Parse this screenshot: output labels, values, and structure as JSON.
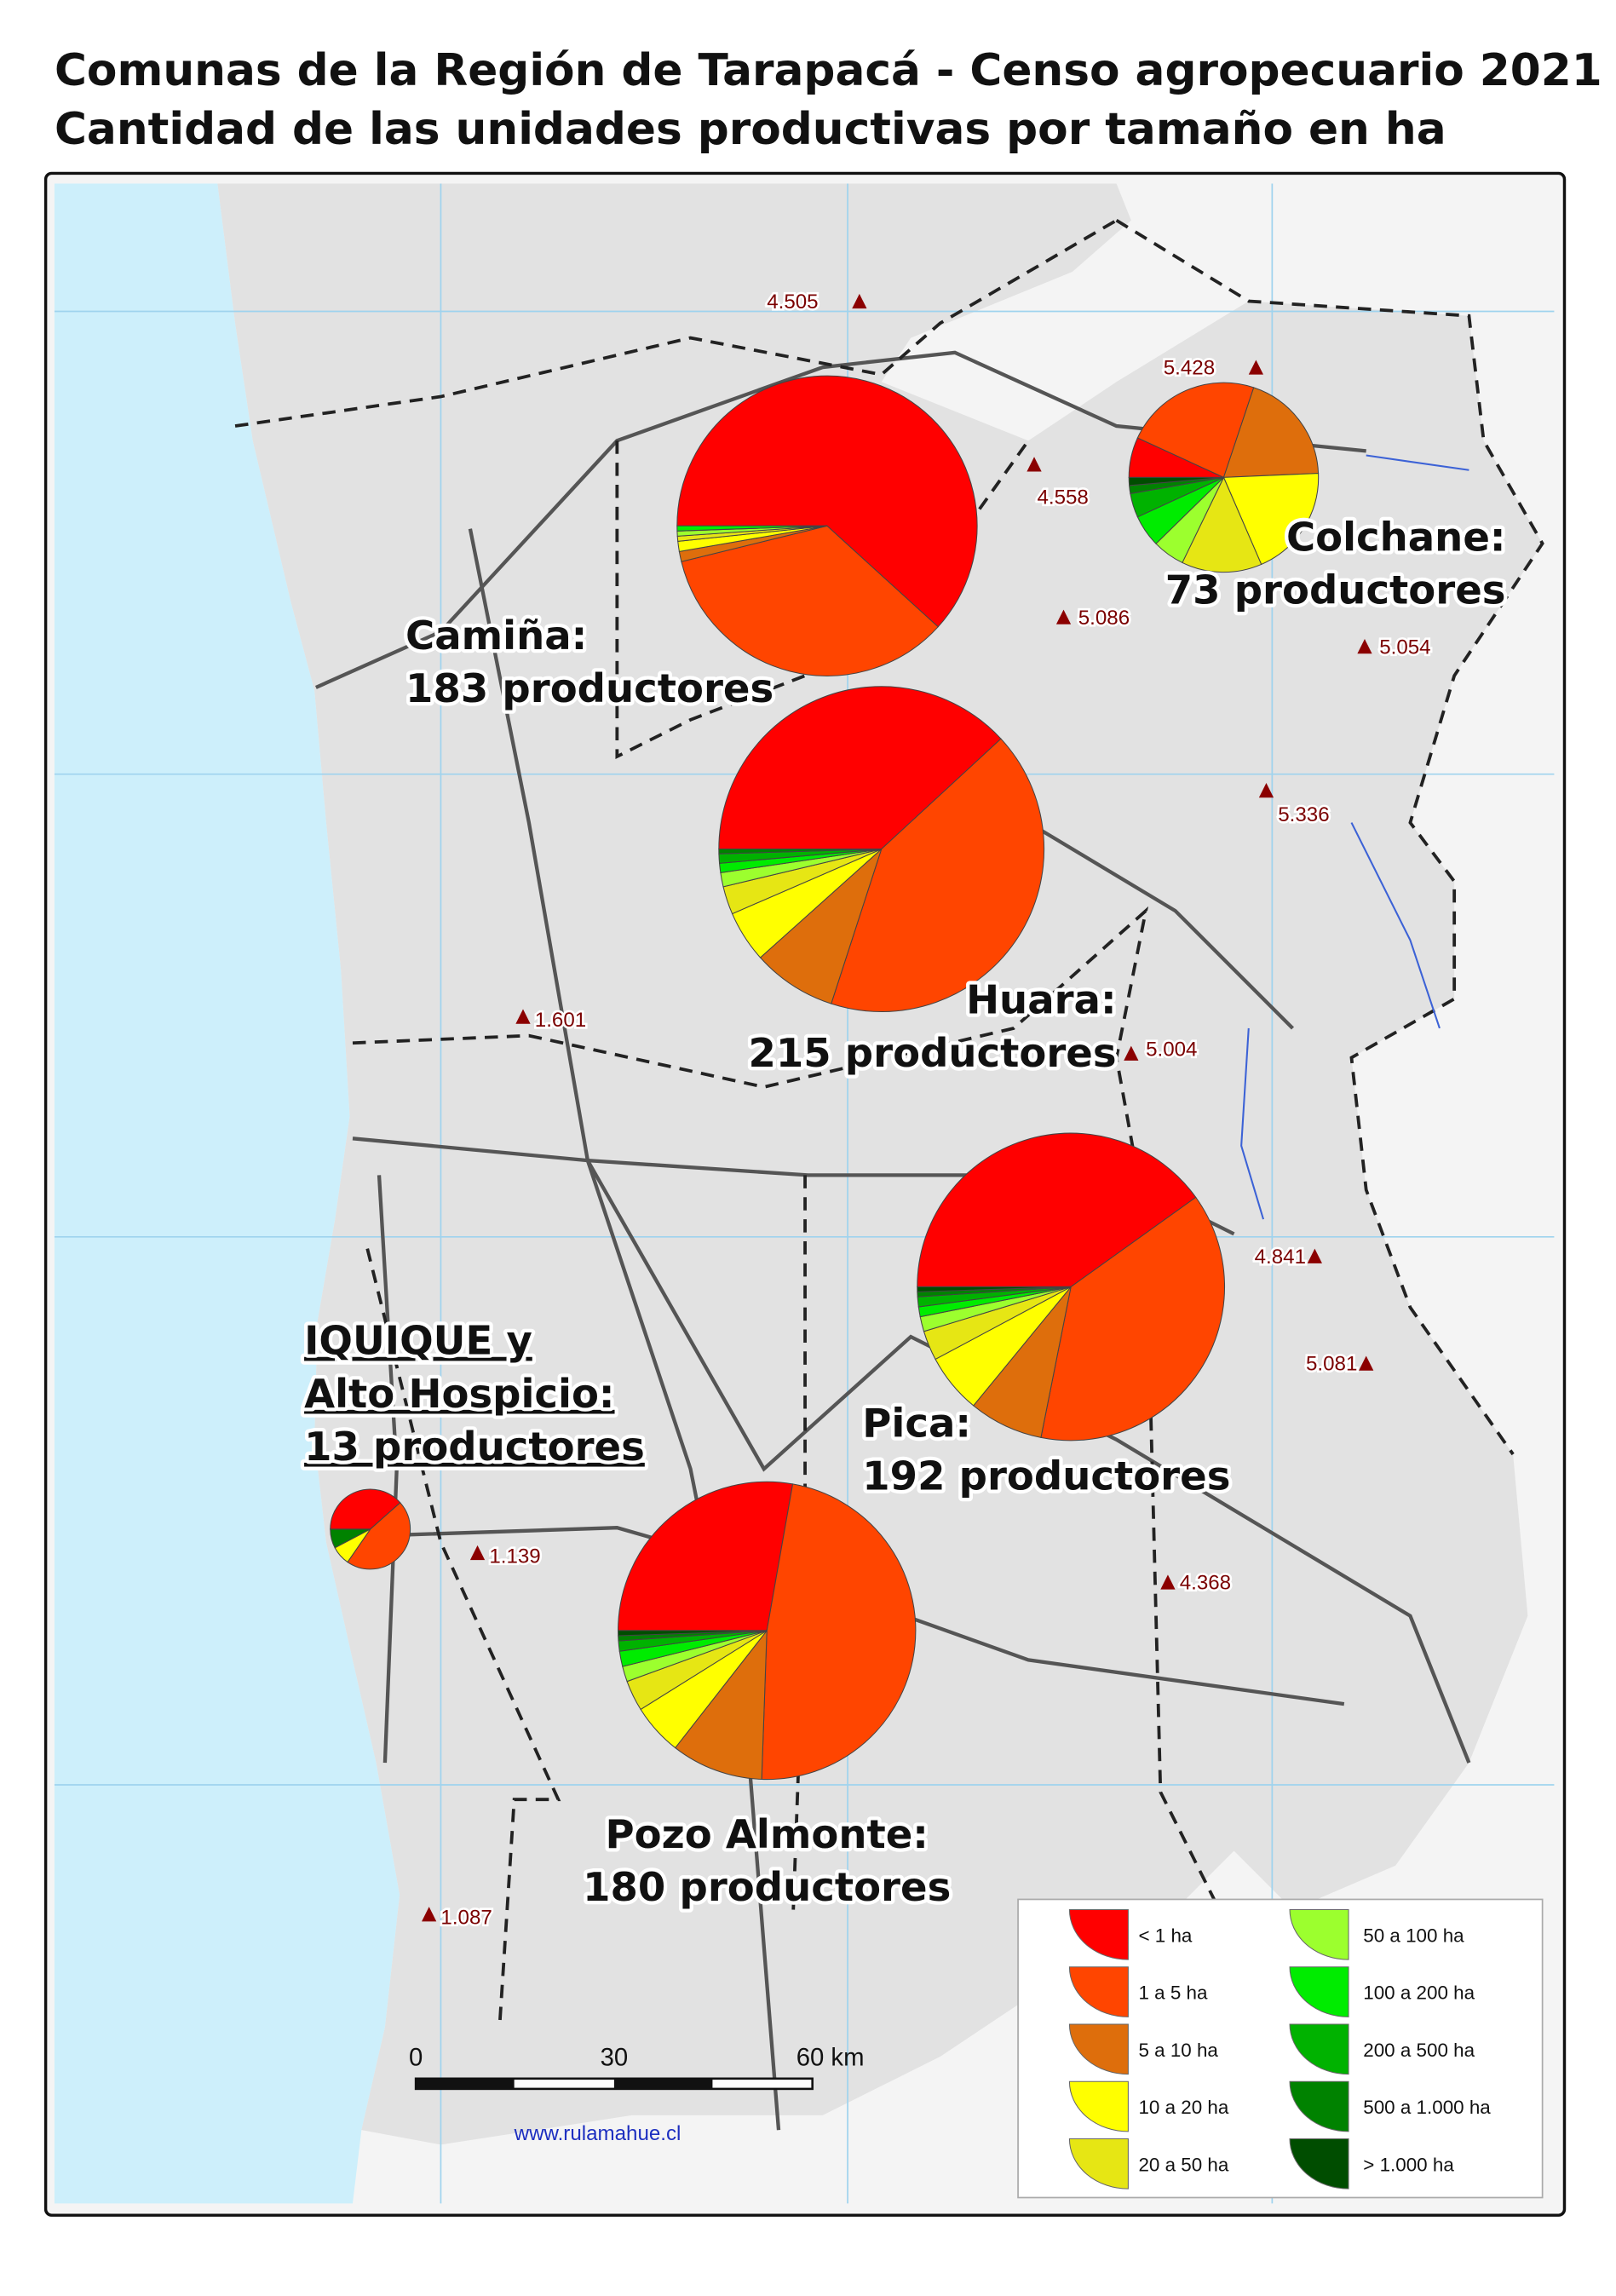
{
  "title": [
    "Comunas de la Región de Tarapacá - Censo agropecuario 2021",
    "Cantidad de las unidades productivas por tamaño en ha"
  ],
  "legend": {
    "classes": [
      {
        "label": "< 1 ha",
        "color": "#ff0000"
      },
      {
        "label": "1 a 5 ha",
        "color": "#ff4500"
      },
      {
        "label": "5 a 10 ha",
        "color": "#de6e0c"
      },
      {
        "label": "10 a 20 ha",
        "color": "#ffff00"
      },
      {
        "label": "20 a 50 ha",
        "color": "#e6e614"
      },
      {
        "label": "50 a 100 ha",
        "color": "#9cff2e"
      },
      {
        "label": "100 a 200 ha",
        "color": "#00ec00"
      },
      {
        "label": "200 a 500 ha",
        "color": "#00b200"
      },
      {
        "label": "500 a 1.000 ha",
        "color": "#008200"
      },
      {
        "label": "> 1.000 ha",
        "color": "#004d00"
      }
    ]
  },
  "communes": [
    {
      "label_lines": [
        "Camiña:",
        "183 productores"
      ],
      "values": [
        113,
        63,
        2,
        2,
        1,
        1,
        1,
        0,
        0,
        0
      ]
    },
    {
      "label_lines": [
        "Colchane:",
        "73 productores"
      ],
      "values": [
        5,
        17,
        14,
        14,
        10,
        4,
        4,
        3,
        1,
        1
      ]
    },
    {
      "label_lines": [
        "Huara:",
        "215 productores"
      ],
      "values": [
        82,
        90,
        18,
        11,
        6,
        3,
        2,
        2,
        1,
        0
      ]
    },
    {
      "label_lines": [
        "Pica:",
        "192 productores"
      ],
      "values": [
        77,
        73,
        15,
        12,
        6,
        3,
        2,
        2,
        1,
        1
      ]
    },
    {
      "label_lines": [
        "Pozo Almonte:",
        "180 productores"
      ],
      "values": [
        50,
        86,
        18,
        10,
        6,
        3,
        3,
        2,
        1,
        1
      ]
    },
    {
      "label_lines": [
        "IQUIQUE y",
        "Alto Hospicio:",
        "13 productores"
      ],
      "values": [
        5,
        6,
        0,
        1,
        0,
        0,
        0,
        0,
        1,
        0
      ]
    }
  ],
  "peaks": [
    "4.505",
    "5.428",
    "4.558",
    "5.086",
    "5.054",
    "5.336",
    "1.601",
    "5.004",
    "4.841",
    "5.081",
    "1.139",
    "4.368",
    "1.087"
  ],
  "scale": {
    "labels": [
      "0",
      "30",
      "60 km"
    ]
  },
  "credit": "www.rulamahue.cl"
}
